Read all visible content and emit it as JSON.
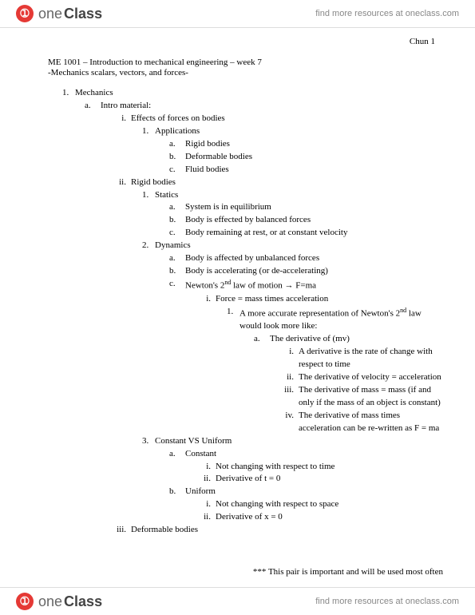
{
  "brand": {
    "one": "one",
    "class": "Class"
  },
  "tagline": "find more resources at oneclass.com",
  "corner": "Chun 1",
  "title": "ME 1001 – Introduction to mechanical engineering – week 7",
  "subtitle": "-Mechanics scalars, vectors, and forces-",
  "o": {
    "n1": "1.",
    "t1": "Mechanics",
    "a1": "a.",
    "ta1": "Intro material:",
    "i1": "i.",
    "ti1": "Effects of forces on bodies",
    "l1_1": "1.",
    "tl1_1": "Applications",
    "aa_a": "a.",
    "taa_a": "Rigid bodies",
    "aa_b": "b.",
    "taa_b": "Deformable bodies",
    "aa_c": "c.",
    "taa_c": "Fluid bodies",
    "i2": "ii.",
    "ti2": "Rigid bodies",
    "l1_s": "1.",
    "tl1_s": "Statics",
    "s_a": "a.",
    "ts_a": "System is in equilibrium",
    "s_b": "b.",
    "ts_b": "Body is effected by balanced forces",
    "s_c": "c.",
    "ts_c": "Body remaining at rest, or at constant velocity",
    "l1_d": "2.",
    "tl1_d": "Dynamics",
    "d_a": "a.",
    "td_a": "Body is affected by unbalanced forces",
    "d_b": "b.",
    "td_b": "Body is accelerating (or de-accelerating)",
    "d_c": "c.",
    "td_c_pre": "Newton's 2",
    "td_c_sup": "nd",
    "td_c_post": " law of motion → F=ma",
    "ii_f": "i.",
    "tii_f": "Force = mass times acceleration",
    "n11_1": "1.",
    "t11_1_pre": "A more accurate representation of Newton's 2",
    "t11_1_sup": "nd",
    "t11_1_post": " law would look more like:",
    "aaa_a": "a.",
    "taaa_a": "The derivative of (mv)",
    "iii_1": "i.",
    "tiii_1": "A derivative is the rate of change with respect to time",
    "iii_2": "ii.",
    "tiii_2": "The derivative of velocity = acceleration",
    "iii_3": "iii.",
    "tiii_3": "The derivative of mass = mass (if and only if the mass of an object is constant)",
    "iii_4": "iv.",
    "tiii_4": "The derivative of mass times acceleration can be re-written as F = ma",
    "l1_c": "3.",
    "tl1_c": "Constant VS Uniform",
    "c_a": "a.",
    "tc_a": "Constant",
    "c_a_i": "i.",
    "tc_a_i": "Not changing with respect to time",
    "c_a_ii": "ii.",
    "tc_a_ii": "Derivative of t = 0",
    "c_b": "b.",
    "tc_b": "Uniform",
    "c_b_i": "i.",
    "tc_b_i": "Not changing with respect to space",
    "c_b_ii": "ii.",
    "tc_b_ii": "Derivative of x = 0",
    "i3": "iii.",
    "ti3": "Deformable bodies"
  },
  "footnote": "*** This pair is important and will be used most often"
}
